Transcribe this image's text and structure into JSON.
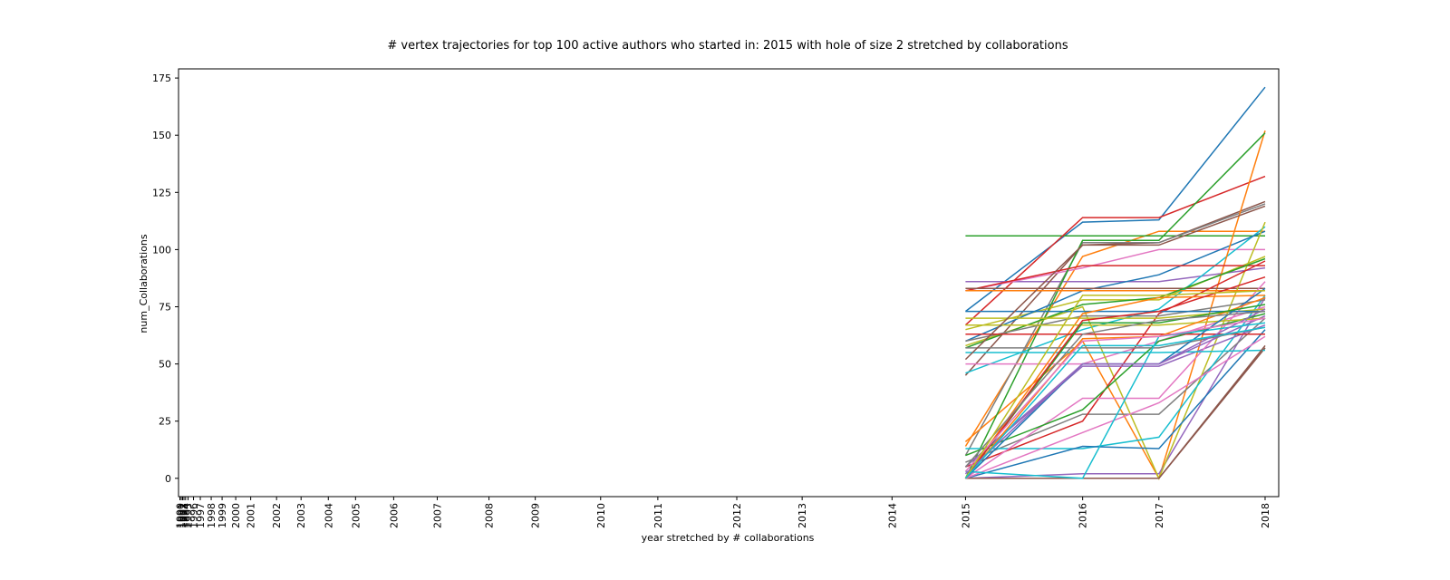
{
  "chart_data": {
    "type": "line",
    "title": "# vertex trajectories for top 100 active authors who started in: 2015 with hole of size 2 stretched by collaborations",
    "xlabel": "year stretched by # collaborations",
    "ylabel": "num_Collaborations",
    "ylim": [
      -8,
      179
    ],
    "y_ticks": [
      0,
      25,
      50,
      75,
      100,
      125,
      150,
      175
    ],
    "x_ticks": [
      {
        "label": "1990",
        "x": 0.5
      },
      {
        "label": "1991",
        "x": 1.0
      },
      {
        "label": "1992",
        "x": 1.5
      },
      {
        "label": "1993",
        "x": 2.0
      },
      {
        "label": "1994",
        "x": 2.6
      },
      {
        "label": "1995",
        "x": 3.5
      },
      {
        "label": "1996",
        "x": 5.5
      },
      {
        "label": "1997",
        "x": 8.0
      },
      {
        "label": "1998",
        "x": 12.0
      },
      {
        "label": "1999",
        "x": 16.0
      },
      {
        "label": "2000",
        "x": 21.0
      },
      {
        "label": "2001",
        "x": 26.5
      },
      {
        "label": "2002",
        "x": 36.0
      },
      {
        "label": "2003",
        "x": 45.0
      },
      {
        "label": "2004",
        "x": 55.0
      },
      {
        "label": "2005",
        "x": 65.0
      },
      {
        "label": "2006",
        "x": 79.0
      },
      {
        "label": "2007",
        "x": 95.0
      },
      {
        "label": "2008",
        "x": 114.0
      },
      {
        "label": "2009",
        "x": 131.0
      },
      {
        "label": "2010",
        "x": 155.0
      },
      {
        "label": "2011",
        "x": 176.0
      },
      {
        "label": "2012",
        "x": 205.0
      },
      {
        "label": "2013",
        "x": 229.0
      },
      {
        "label": "2014",
        "x": 262.0
      },
      {
        "label": "2015",
        "x": 289.0
      },
      {
        "label": "2016",
        "x": 332.0
      },
      {
        "label": "2017",
        "x": 360.0
      },
      {
        "label": "2018",
        "x": 399.0
      }
    ],
    "x_domain": [
      0,
      404
    ],
    "x_data": [
      289.0,
      332.0,
      360.0,
      399.0
    ],
    "grid": false,
    "legend": "none",
    "series": [
      {
        "color": "#1f77b4",
        "values": [
          73,
          112,
          113,
          171
        ]
      },
      {
        "color": "#ff7f0e",
        "values": [
          14,
          97,
          108,
          108
        ]
      },
      {
        "color": "#2ca02c",
        "values": [
          106,
          106,
          106,
          106
        ]
      },
      {
        "color": "#d62728",
        "values": [
          67,
          114,
          114,
          132
        ]
      },
      {
        "color": "#9467bd",
        "values": [
          86,
          86,
          86,
          92
        ]
      },
      {
        "color": "#8c564b",
        "values": [
          45,
          102,
          103,
          121
        ]
      },
      {
        "color": "#e377c2",
        "values": [
          82,
          92,
          100,
          100
        ]
      },
      {
        "color": "#7f7f7f",
        "values": [
          10,
          103,
          103,
          120
        ]
      },
      {
        "color": "#bcbd22",
        "values": [
          65,
          78,
          78,
          97
        ]
      },
      {
        "color": "#17becf",
        "values": [
          46,
          65,
          74,
          110
        ]
      },
      {
        "color": "#1f77b4",
        "values": [
          60,
          82,
          89,
          108
        ]
      },
      {
        "color": "#ff7f0e",
        "values": [
          16,
          60,
          0,
          152
        ]
      },
      {
        "color": "#2ca02c",
        "values": [
          0,
          104,
          104,
          151
        ]
      },
      {
        "color": "#d62728",
        "values": [
          82,
          93,
          93,
          93
        ]
      },
      {
        "color": "#9467bd",
        "values": [
          0,
          2,
          2,
          79
        ]
      },
      {
        "color": "#8c564b",
        "values": [
          83,
          83,
          83,
          83
        ]
      },
      {
        "color": "#e377c2",
        "values": [
          50,
          50,
          60,
          75
        ]
      },
      {
        "color": "#7f7f7f",
        "values": [
          7,
          28,
          28,
          70
        ]
      },
      {
        "color": "#bcbd22",
        "values": [
          58,
          75,
          0,
          112
        ]
      },
      {
        "color": "#17becf",
        "values": [
          13,
          13,
          18,
          80
        ]
      },
      {
        "color": "#1f77b4",
        "values": [
          0,
          14,
          13,
          65
        ]
      },
      {
        "color": "#ff7f0e",
        "values": [
          82,
          82,
          82,
          82
        ]
      },
      {
        "color": "#2ca02c",
        "values": [
          57,
          76,
          79,
          96
        ]
      },
      {
        "color": "#d62728",
        "values": [
          5,
          25,
          72,
          95
        ]
      },
      {
        "color": "#9467bd",
        "values": [
          5,
          49,
          49,
          67
        ]
      },
      {
        "color": "#8c564b",
        "values": [
          0,
          0,
          0,
          57
        ]
      },
      {
        "color": "#e377c2",
        "values": [
          0,
          35,
          35,
          86
        ]
      },
      {
        "color": "#7f7f7f",
        "values": [
          60,
          71,
          71,
          78
        ]
      },
      {
        "color": "#bcbd22",
        "values": [
          70,
          70,
          70,
          74
        ]
      },
      {
        "color": "#17becf",
        "values": [
          55,
          55,
          55,
          56
        ]
      },
      {
        "color": "#1f77b4",
        "values": [
          73,
          73,
          73,
          73
        ]
      },
      {
        "color": "#ff7f0e",
        "values": [
          0,
          72,
          79,
          80
        ]
      },
      {
        "color": "#2ca02c",
        "values": [
          10,
          30,
          60,
          72
        ]
      },
      {
        "color": "#d62728",
        "values": [
          63,
          63,
          63,
          63
        ]
      },
      {
        "color": "#9467bd",
        "values": [
          5,
          50,
          50,
          71
        ]
      },
      {
        "color": "#8c564b",
        "values": [
          0,
          0,
          0,
          58
        ]
      },
      {
        "color": "#e377c2",
        "values": [
          0,
          20,
          33,
          62
        ]
      },
      {
        "color": "#7f7f7f",
        "values": [
          57,
          57,
          57,
          66
        ]
      },
      {
        "color": "#bcbd22",
        "values": [
          67,
          67,
          67,
          70
        ]
      },
      {
        "color": "#17becf",
        "values": [
          3,
          0,
          62,
          68
        ]
      },
      {
        "color": "#1f77b4",
        "values": [
          0,
          50,
          50,
          83
        ]
      },
      {
        "color": "#ff7f0e",
        "values": [
          0,
          61,
          62,
          79
        ]
      },
      {
        "color": "#2ca02c",
        "values": [
          0,
          68,
          68,
          76
        ]
      },
      {
        "color": "#d62728",
        "values": [
          0,
          69,
          73,
          88
        ]
      },
      {
        "color": "#9467bd",
        "values": [
          2,
          50,
          50,
          74
        ]
      },
      {
        "color": "#8c564b",
        "values": [
          52,
          102,
          102,
          119
        ]
      },
      {
        "color": "#e377c2",
        "values": [
          3,
          60,
          62,
          70
        ]
      },
      {
        "color": "#7f7f7f",
        "values": [
          5,
          63,
          69,
          73
        ]
      },
      {
        "color": "#bcbd22",
        "values": [
          0,
          80,
          80,
          82
        ]
      },
      {
        "color": "#17becf",
        "values": [
          0,
          58,
          58,
          66
        ]
      }
    ]
  }
}
